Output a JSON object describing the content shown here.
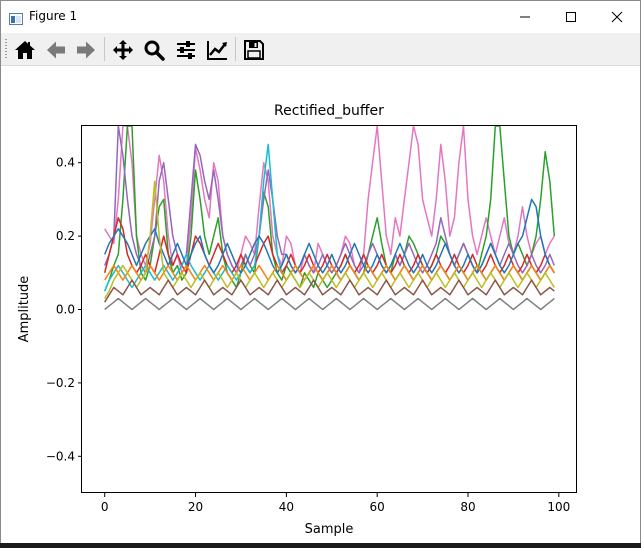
{
  "window": {
    "title": "Figure 1",
    "controls": [
      "minimize",
      "maximize",
      "close"
    ]
  },
  "toolbar": {
    "buttons": [
      {
        "name": "home",
        "icon": "home-icon"
      },
      {
        "name": "back",
        "icon": "arrow-left-icon"
      },
      {
        "name": "forward",
        "icon": "arrow-right-icon"
      },
      {
        "name": "pan",
        "icon": "move-icon"
      },
      {
        "name": "zoom",
        "icon": "magnifier-icon"
      },
      {
        "name": "configure-subplots",
        "icon": "sliders-icon"
      },
      {
        "name": "edit-axis",
        "icon": "line-chart-icon"
      },
      {
        "name": "save",
        "icon": "floppy-disk-icon"
      }
    ]
  },
  "chart_data": {
    "type": "line",
    "title": "Rectified_buffer",
    "xlabel": "Sample",
    "ylabel": "Amplitude",
    "xlim": [
      -5,
      104
    ],
    "ylim": [
      -0.5,
      0.5
    ],
    "xticks": [
      0,
      20,
      40,
      60,
      80,
      100
    ],
    "xticklabels": [
      "0",
      "20",
      "40",
      "60",
      "80",
      "100"
    ],
    "yticks": [
      -0.4,
      -0.2,
      0.0,
      0.2,
      0.4
    ],
    "yticklabels": [
      "−0.4",
      "−0.2",
      "0.0",
      "0.2",
      "0.4"
    ],
    "grid": false,
    "legend": "none",
    "colors": [
      "#1f77b4",
      "#ff7f0e",
      "#2ca02c",
      "#d62728",
      "#9467bd",
      "#8c564b",
      "#e377c2",
      "#7f7f7f",
      "#bcbd22",
      "#17becf"
    ],
    "x": [
      0,
      1,
      2,
      3,
      4,
      5,
      6,
      7,
      8,
      9,
      10,
      11,
      12,
      13,
      14,
      15,
      16,
      17,
      18,
      19,
      20,
      21,
      22,
      23,
      24,
      25,
      26,
      27,
      28,
      29,
      30,
      31,
      32,
      33,
      34,
      35,
      36,
      37,
      38,
      39,
      40,
      41,
      42,
      43,
      44,
      45,
      46,
      47,
      48,
      49,
      50,
      51,
      52,
      53,
      54,
      55,
      56,
      57,
      58,
      59,
      60,
      61,
      62,
      63,
      64,
      65,
      66,
      67,
      68,
      69,
      70,
      71,
      72,
      73,
      74,
      75,
      76,
      77,
      78,
      79,
      80,
      81,
      82,
      83,
      84,
      85,
      86,
      87,
      88,
      89,
      90,
      91,
      92,
      93,
      94,
      95,
      96,
      97,
      98,
      99
    ],
    "series": [
      {
        "color": "#e377c2",
        "values": [
          0.22,
          0.2,
          0.18,
          0.3,
          0.5,
          0.5,
          0.4,
          0.2,
          0.15,
          0.12,
          0.18,
          0.3,
          0.42,
          0.35,
          0.2,
          0.12,
          0.15,
          0.1,
          0.12,
          0.25,
          0.44,
          0.38,
          0.3,
          0.25,
          0.4,
          0.35,
          0.2,
          0.15,
          0.12,
          0.1,
          0.15,
          0.2,
          0.18,
          0.15,
          0.28,
          0.4,
          0.35,
          0.2,
          0.15,
          0.12,
          0.2,
          0.18,
          0.12,
          0.1,
          0.15,
          0.12,
          0.1,
          0.18,
          0.15,
          0.12,
          0.1,
          0.12,
          0.15,
          0.2,
          0.18,
          0.12,
          0.1,
          0.15,
          0.3,
          0.4,
          0.5,
          0.35,
          0.2,
          0.15,
          0.25,
          0.2,
          0.3,
          0.4,
          0.5,
          0.45,
          0.3,
          0.25,
          0.2,
          0.3,
          0.45,
          0.35,
          0.2,
          0.25,
          0.4,
          0.5,
          0.3,
          0.2,
          0.15,
          0.2,
          0.25,
          0.2,
          0.15,
          0.2,
          0.25,
          0.18,
          0.15,
          0.2,
          0.28,
          0.2,
          0.15,
          0.18,
          0.2,
          0.15,
          0.18,
          0.2
        ]
      },
      {
        "color": "#2ca02c",
        "values": [
          0.05,
          0.08,
          0.12,
          0.15,
          0.3,
          0.5,
          0.5,
          0.2,
          0.1,
          0.08,
          0.12,
          0.2,
          0.28,
          0.3,
          0.15,
          0.1,
          0.12,
          0.08,
          0.1,
          0.2,
          0.38,
          0.3,
          0.2,
          0.15,
          0.2,
          0.25,
          0.15,
          0.1,
          0.08,
          0.06,
          0.1,
          0.15,
          0.12,
          0.1,
          0.2,
          0.32,
          0.28,
          0.15,
          0.1,
          0.08,
          0.12,
          0.1,
          0.08,
          0.06,
          0.1,
          0.08,
          0.06,
          0.1,
          0.08,
          0.06,
          0.08,
          0.1,
          0.12,
          0.15,
          0.12,
          0.1,
          0.08,
          0.1,
          0.15,
          0.2,
          0.25,
          0.18,
          0.12,
          0.1,
          0.15,
          0.12,
          0.15,
          0.2,
          0.18,
          0.15,
          0.12,
          0.1,
          0.12,
          0.15,
          0.2,
          0.18,
          0.15,
          0.12,
          0.15,
          0.18,
          0.15,
          0.12,
          0.1,
          0.15,
          0.2,
          0.3,
          0.5,
          0.5,
          0.35,
          0.2,
          0.15,
          0.18,
          0.15,
          0.12,
          0.15,
          0.2,
          0.3,
          0.43,
          0.35,
          0.2
        ]
      },
      {
        "color": "#9467bd",
        "values": [
          0.12,
          0.15,
          0.2,
          0.5,
          0.42,
          0.3,
          0.2,
          0.15,
          0.12,
          0.1,
          0.15,
          0.2,
          0.35,
          0.4,
          0.3,
          0.2,
          0.15,
          0.12,
          0.15,
          0.3,
          0.45,
          0.42,
          0.35,
          0.3,
          0.38,
          0.3,
          0.2,
          0.15,
          0.12,
          0.1,
          0.12,
          0.15,
          0.12,
          0.15,
          0.2,
          0.3,
          0.38,
          0.3,
          0.2,
          0.15,
          0.15,
          0.12,
          0.1,
          0.12,
          0.15,
          0.12,
          0.1,
          0.12,
          0.15,
          0.12,
          0.1,
          0.12,
          0.15,
          0.18,
          0.15,
          0.12,
          0.1,
          0.12,
          0.15,
          0.18,
          0.15,
          0.12,
          0.1,
          0.12,
          0.15,
          0.12,
          0.15,
          0.18,
          0.15,
          0.12,
          0.1,
          0.12,
          0.15,
          0.18,
          0.25,
          0.2,
          0.15,
          0.12,
          0.15,
          0.18,
          0.15,
          0.12,
          0.1,
          0.12,
          0.15,
          0.18,
          0.15,
          0.12,
          0.15,
          0.18,
          0.15,
          0.12,
          0.1,
          0.12,
          0.15,
          0.12,
          0.1,
          0.12,
          0.15,
          0.12
        ]
      },
      {
        "color": "#d62728",
        "values": [
          0.1,
          0.15,
          0.2,
          0.25,
          0.22,
          0.15,
          0.12,
          0.1,
          0.12,
          0.15,
          0.12,
          0.1,
          0.15,
          0.2,
          0.15,
          0.12,
          0.15,
          0.12,
          0.1,
          0.15,
          0.2,
          0.18,
          0.15,
          0.12,
          0.15,
          0.18,
          0.15,
          0.12,
          0.1,
          0.12,
          0.15,
          0.12,
          0.1,
          0.12,
          0.15,
          0.18,
          0.2,
          0.15,
          0.12,
          0.1,
          0.12,
          0.15,
          0.12,
          0.1,
          0.12,
          0.15,
          0.12,
          0.1,
          0.12,
          0.15,
          0.12,
          0.1,
          0.12,
          0.15,
          0.12,
          0.1,
          0.12,
          0.15,
          0.12,
          0.1,
          0.12,
          0.15,
          0.12,
          0.1,
          0.12,
          0.15,
          0.12,
          0.1,
          0.12,
          0.15,
          0.12,
          0.1,
          0.12,
          0.15,
          0.12,
          0.1,
          0.12,
          0.15,
          0.12,
          0.1,
          0.12,
          0.15,
          0.12,
          0.1,
          0.12,
          0.15,
          0.12,
          0.1,
          0.12,
          0.15,
          0.12,
          0.1,
          0.12,
          0.15,
          0.12,
          0.1,
          0.12,
          0.15,
          0.12,
          0.1
        ]
      },
      {
        "color": "#17becf",
        "values": [
          0.05,
          0.08,
          0.1,
          0.12,
          0.1,
          0.08,
          0.06,
          0.08,
          0.1,
          0.12,
          0.1,
          0.08,
          0.1,
          0.12,
          0.1,
          0.08,
          0.1,
          0.12,
          0.15,
          0.12,
          0.1,
          0.08,
          0.1,
          0.12,
          0.1,
          0.08,
          0.1,
          0.12,
          0.1,
          0.08,
          0.1,
          0.12,
          0.1,
          0.12,
          0.2,
          0.35,
          0.45,
          0.3,
          0.15,
          0.1,
          0.08,
          0.1,
          0.12,
          0.1,
          0.08,
          0.1,
          0.12,
          0.1,
          0.08,
          0.1,
          0.12,
          0.1,
          0.08,
          0.1,
          0.12,
          0.1,
          0.08,
          0.1,
          0.12,
          0.1,
          0.08,
          0.1,
          0.12,
          0.1,
          0.08,
          0.1,
          0.12,
          0.1,
          0.08,
          0.1,
          0.12,
          0.1,
          0.08,
          0.1,
          0.12,
          0.1,
          0.08,
          0.1,
          0.12,
          0.1,
          0.08,
          0.1,
          0.12,
          0.1,
          0.08,
          0.1,
          0.12,
          0.1,
          0.08,
          0.1,
          0.12,
          0.1,
          0.08,
          0.1,
          0.12,
          0.1,
          0.08,
          0.1,
          0.12,
          0.1
        ]
      },
      {
        "color": "#1f77b4",
        "values": [
          0.15,
          0.18,
          0.2,
          0.22,
          0.2,
          0.18,
          0.15,
          0.12,
          0.15,
          0.18,
          0.2,
          0.22,
          0.18,
          0.15,
          0.12,
          0.15,
          0.18,
          0.15,
          0.12,
          0.15,
          0.18,
          0.2,
          0.15,
          0.12,
          0.1,
          0.12,
          0.15,
          0.18,
          0.15,
          0.12,
          0.1,
          0.12,
          0.15,
          0.18,
          0.2,
          0.18,
          0.15,
          0.12,
          0.1,
          0.12,
          0.15,
          0.12,
          0.1,
          0.12,
          0.15,
          0.18,
          0.15,
          0.12,
          0.1,
          0.12,
          0.15,
          0.12,
          0.1,
          0.12,
          0.15,
          0.18,
          0.15,
          0.12,
          0.1,
          0.12,
          0.15,
          0.12,
          0.1,
          0.12,
          0.15,
          0.18,
          0.15,
          0.12,
          0.1,
          0.12,
          0.15,
          0.12,
          0.1,
          0.12,
          0.15,
          0.18,
          0.15,
          0.12,
          0.1,
          0.12,
          0.15,
          0.12,
          0.1,
          0.12,
          0.15,
          0.18,
          0.15,
          0.12,
          0.1,
          0.12,
          0.15,
          0.18,
          0.2,
          0.25,
          0.3,
          0.28,
          0.2,
          0.15,
          0.12,
          0.1
        ]
      },
      {
        "color": "#ff7f0e",
        "values": [
          0.08,
          0.1,
          0.12,
          0.1,
          0.08,
          0.1,
          0.12,
          0.1,
          0.08,
          0.1,
          0.12,
          0.1,
          0.08,
          0.1,
          0.12,
          0.1,
          0.08,
          0.1,
          0.12,
          0.1,
          0.08,
          0.1,
          0.12,
          0.1,
          0.08,
          0.1,
          0.12,
          0.1,
          0.08,
          0.1,
          0.12,
          0.1,
          0.08,
          0.1,
          0.12,
          0.1,
          0.08,
          0.1,
          0.12,
          0.1,
          0.08,
          0.1,
          0.12,
          0.1,
          0.08,
          0.1,
          0.12,
          0.1,
          0.08,
          0.1,
          0.12,
          0.1,
          0.08,
          0.1,
          0.12,
          0.1,
          0.08,
          0.1,
          0.12,
          0.1,
          0.08,
          0.1,
          0.12,
          0.1,
          0.08,
          0.1,
          0.12,
          0.1,
          0.08,
          0.1,
          0.12,
          0.1,
          0.08,
          0.1,
          0.12,
          0.1,
          0.08,
          0.1,
          0.12,
          0.1,
          0.08,
          0.1,
          0.12,
          0.1,
          0.08,
          0.1,
          0.12,
          0.1,
          0.08,
          0.1,
          0.12,
          0.1,
          0.08,
          0.1,
          0.12,
          0.1,
          0.08,
          0.1,
          0.12,
          0.1
        ]
      },
      {
        "color": "#bcbd22",
        "values": [
          0.03,
          0.05,
          0.08,
          0.1,
          0.12,
          0.1,
          0.08,
          0.06,
          0.08,
          0.1,
          0.2,
          0.35,
          0.2,
          0.1,
          0.08,
          0.06,
          0.08,
          0.1,
          0.08,
          0.06,
          0.08,
          0.1,
          0.08,
          0.06,
          0.08,
          0.1,
          0.08,
          0.06,
          0.08,
          0.1,
          0.08,
          0.06,
          0.08,
          0.1,
          0.08,
          0.06,
          0.08,
          0.1,
          0.08,
          0.06,
          0.08,
          0.1,
          0.08,
          0.06,
          0.08,
          0.1,
          0.08,
          0.06,
          0.08,
          0.1,
          0.08,
          0.06,
          0.08,
          0.1,
          0.08,
          0.06,
          0.08,
          0.1,
          0.08,
          0.06,
          0.08,
          0.1,
          0.08,
          0.06,
          0.08,
          0.1,
          0.08,
          0.06,
          0.08,
          0.1,
          0.08,
          0.06,
          0.08,
          0.1,
          0.08,
          0.06,
          0.08,
          0.1,
          0.08,
          0.06,
          0.08,
          0.1,
          0.08,
          0.06,
          0.08,
          0.1,
          0.08,
          0.06,
          0.08,
          0.1,
          0.08,
          0.06,
          0.08,
          0.1,
          0.08,
          0.06,
          0.08,
          0.1,
          0.08,
          0.06
        ]
      },
      {
        "color": "#8c564b",
        "values": [
          0.02,
          0.04,
          0.06,
          0.05,
          0.04,
          0.06,
          0.08,
          0.06,
          0.04,
          0.05,
          0.06,
          0.05,
          0.04,
          0.06,
          0.08,
          0.06,
          0.04,
          0.05,
          0.06,
          0.05,
          0.04,
          0.06,
          0.08,
          0.06,
          0.04,
          0.05,
          0.06,
          0.05,
          0.04,
          0.06,
          0.08,
          0.06,
          0.04,
          0.05,
          0.06,
          0.05,
          0.04,
          0.06,
          0.08,
          0.06,
          0.04,
          0.05,
          0.06,
          0.05,
          0.04,
          0.06,
          0.08,
          0.06,
          0.04,
          0.05,
          0.06,
          0.05,
          0.04,
          0.06,
          0.08,
          0.06,
          0.04,
          0.05,
          0.06,
          0.05,
          0.04,
          0.06,
          0.08,
          0.06,
          0.04,
          0.05,
          0.06,
          0.05,
          0.04,
          0.06,
          0.08,
          0.06,
          0.04,
          0.05,
          0.06,
          0.05,
          0.04,
          0.06,
          0.08,
          0.06,
          0.04,
          0.05,
          0.06,
          0.05,
          0.04,
          0.06,
          0.08,
          0.06,
          0.04,
          0.05,
          0.06,
          0.05,
          0.04,
          0.06,
          0.08,
          0.06,
          0.04,
          0.05,
          0.06,
          0.05
        ]
      },
      {
        "color": "#7f7f7f",
        "values": [
          0.0,
          0.01,
          0.02,
          0.03,
          0.02,
          0.01,
          0.0,
          0.01,
          0.02,
          0.03,
          0.02,
          0.01,
          0.0,
          0.01,
          0.02,
          0.03,
          0.02,
          0.01,
          0.0,
          0.01,
          0.02,
          0.03,
          0.02,
          0.01,
          0.0,
          0.01,
          0.02,
          0.03,
          0.02,
          0.01,
          0.0,
          0.01,
          0.02,
          0.03,
          0.02,
          0.01,
          0.0,
          0.01,
          0.02,
          0.03,
          0.02,
          0.01,
          0.0,
          0.01,
          0.02,
          0.03,
          0.02,
          0.01,
          0.0,
          0.01,
          0.02,
          0.03,
          0.02,
          0.01,
          0.0,
          0.01,
          0.02,
          0.03,
          0.02,
          0.01,
          0.0,
          0.01,
          0.02,
          0.03,
          0.02,
          0.01,
          0.0,
          0.01,
          0.02,
          0.03,
          0.02,
          0.01,
          0.0,
          0.01,
          0.02,
          0.03,
          0.02,
          0.01,
          0.0,
          0.01,
          0.02,
          0.03,
          0.02,
          0.01,
          0.0,
          0.01,
          0.02,
          0.03,
          0.02,
          0.01,
          0.0,
          0.01,
          0.02,
          0.03,
          0.02,
          0.01,
          0.0,
          0.01,
          0.02,
          0.03
        ]
      }
    ]
  }
}
